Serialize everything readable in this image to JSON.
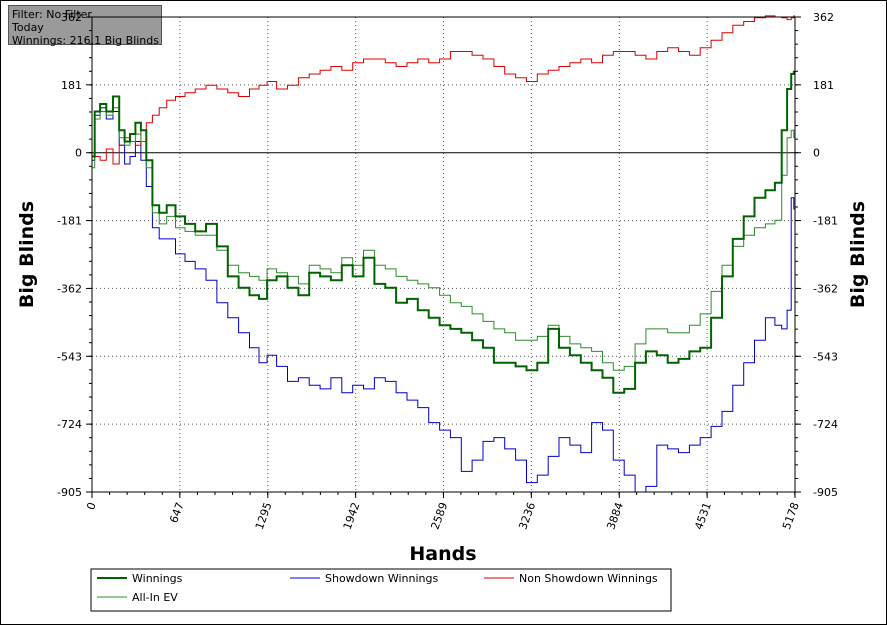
{
  "filter_box": {
    "filter_line": "Filter: No Filter",
    "date_line": "Today",
    "winnings_line": "Winnings: 216.1 Big Blinds"
  },
  "chart_data": {
    "type": "line",
    "xlabel": "Hands",
    "ylabel": "Big Blinds",
    "ylabel_right": "Big Blinds",
    "xlim": [
      0,
      5178
    ],
    "ylim": [
      -905,
      362
    ],
    "x_ticks": [
      0,
      647,
      1295,
      1942,
      2589,
      3236,
      3884,
      4531,
      5178
    ],
    "y_ticks": [
      362,
      181,
      0,
      -181,
      -362,
      -543,
      -724,
      -905
    ],
    "grid": true,
    "legend_position": "bottom",
    "series": [
      {
        "name": "Winnings",
        "color": "#006400",
        "width": 2,
        "x": [
          0,
          40,
          80,
          130,
          180,
          220,
          260,
          300,
          340,
          380,
          420,
          470,
          520,
          580,
          650,
          720,
          800,
          880,
          960,
          1040,
          1120,
          1200,
          1260,
          1320,
          1400,
          1480,
          1560,
          1640,
          1720,
          1800,
          1880,
          1960,
          2040,
          2120,
          2200,
          2280,
          2360,
          2440,
          2520,
          2600,
          2680,
          2760,
          2840,
          2920,
          3000,
          3080,
          3160,
          3240,
          3320,
          3400,
          3480,
          3560,
          3640,
          3720,
          3800,
          3880,
          3960,
          4040,
          4120,
          4200,
          4280,
          4360,
          4440,
          4520,
          4600,
          4680,
          4760,
          4840,
          4920,
          5000,
          5060,
          5100,
          5140,
          5160,
          5178
        ],
        "values": [
          -10,
          110,
          130,
          110,
          150,
          60,
          30,
          50,
          80,
          60,
          -20,
          -140,
          -160,
          -140,
          -170,
          -190,
          -210,
          -190,
          -250,
          -330,
          -360,
          -380,
          -390,
          -340,
          -330,
          -360,
          -380,
          -320,
          -330,
          -340,
          -300,
          -330,
          -280,
          -350,
          -360,
          -400,
          -390,
          -420,
          -440,
          -460,
          -470,
          -480,
          -500,
          -520,
          -560,
          -560,
          -570,
          -580,
          -560,
          -470,
          -520,
          -540,
          -560,
          -580,
          -600,
          -640,
          -630,
          -560,
          -530,
          -540,
          -560,
          -550,
          -530,
          -520,
          -440,
          -330,
          -230,
          -170,
          -120,
          -100,
          -80,
          60,
          170,
          210,
          216
        ]
      },
      {
        "name": "All-In EV",
        "color": "#2e8b2e",
        "width": 1,
        "x": [
          0,
          40,
          80,
          130,
          180,
          220,
          260,
          300,
          340,
          380,
          420,
          470,
          520,
          580,
          650,
          720,
          800,
          880,
          960,
          1040,
          1120,
          1200,
          1260,
          1320,
          1400,
          1480,
          1560,
          1640,
          1720,
          1800,
          1880,
          1960,
          2040,
          2120,
          2200,
          2280,
          2360,
          2440,
          2520,
          2600,
          2680,
          2760,
          2840,
          2920,
          3000,
          3080,
          3160,
          3240,
          3320,
          3400,
          3480,
          3560,
          3640,
          3720,
          3800,
          3880,
          3960,
          4040,
          4120,
          4200,
          4280,
          4360,
          4440,
          4520,
          4600,
          4680,
          4760,
          4840,
          4920,
          5000,
          5060,
          5100,
          5140,
          5160,
          5178
        ],
        "values": [
          -40,
          90,
          110,
          100,
          120,
          40,
          20,
          30,
          50,
          30,
          -40,
          -160,
          -190,
          -170,
          -200,
          -210,
          -220,
          -220,
          -260,
          -300,
          -320,
          -330,
          -340,
          -310,
          -320,
          -330,
          -350,
          -300,
          -310,
          -320,
          -280,
          -300,
          -260,
          -300,
          -310,
          -330,
          -340,
          -350,
          -360,
          -380,
          -400,
          -410,
          -430,
          -450,
          -470,
          -480,
          -500,
          -500,
          -490,
          -460,
          -490,
          -510,
          -520,
          -530,
          -560,
          -580,
          -570,
          -510,
          -470,
          -470,
          -480,
          -480,
          -460,
          -430,
          -370,
          -300,
          -250,
          -220,
          -200,
          -190,
          -180,
          -60,
          40,
          60,
          40
        ]
      },
      {
        "name": "Showdown Winnings",
        "color": "#0000cc",
        "width": 1,
        "x": [
          0,
          40,
          80,
          130,
          180,
          220,
          260,
          300,
          340,
          380,
          420,
          470,
          520,
          580,
          650,
          720,
          800,
          880,
          960,
          1040,
          1120,
          1200,
          1260,
          1320,
          1400,
          1480,
          1560,
          1640,
          1720,
          1800,
          1880,
          1960,
          2040,
          2120,
          2200,
          2280,
          2360,
          2440,
          2520,
          2600,
          2680,
          2760,
          2840,
          2920,
          3000,
          3080,
          3160,
          3240,
          3320,
          3400,
          3480,
          3560,
          3640,
          3720,
          3800,
          3880,
          3960,
          4040,
          4120,
          4200,
          4280,
          4360,
          4440,
          4520,
          4600,
          4680,
          4760,
          4840,
          4920,
          5000,
          5060,
          5100,
          5140,
          5160,
          5178
        ],
        "values": [
          -20,
          100,
          120,
          90,
          110,
          20,
          -30,
          -10,
          30,
          -20,
          -90,
          -200,
          -230,
          -230,
          -270,
          -290,
          -310,
          -340,
          -400,
          -440,
          -480,
          -520,
          -560,
          -540,
          -570,
          -610,
          -600,
          -620,
          -630,
          -600,
          -640,
          -620,
          -630,
          -600,
          -610,
          -640,
          -660,
          -680,
          -720,
          -740,
          -760,
          -850,
          -820,
          -770,
          -760,
          -790,
          -820,
          -880,
          -860,
          -810,
          -760,
          -780,
          -800,
          -720,
          -740,
          -820,
          -860,
          -905,
          -890,
          -780,
          -790,
          -800,
          -780,
          -760,
          -730,
          -690,
          -620,
          -560,
          -500,
          -440,
          -460,
          -470,
          -420,
          -120,
          -150
        ]
      },
      {
        "name": "Non Showdown Winnings",
        "color": "#dd0000",
        "width": 1,
        "x": [
          0,
          40,
          80,
          130,
          180,
          220,
          260,
          300,
          340,
          380,
          420,
          470,
          520,
          580,
          650,
          720,
          800,
          880,
          960,
          1040,
          1120,
          1200,
          1260,
          1320,
          1400,
          1480,
          1560,
          1640,
          1720,
          1800,
          1880,
          1960,
          2040,
          2120,
          2200,
          2280,
          2360,
          2440,
          2520,
          2600,
          2680,
          2760,
          2840,
          2920,
          3000,
          3080,
          3160,
          3240,
          3320,
          3400,
          3480,
          3560,
          3640,
          3720,
          3800,
          3880,
          3960,
          4040,
          4120,
          4200,
          4280,
          4360,
          4440,
          4520,
          4600,
          4680,
          4760,
          4840,
          4920,
          5000,
          5060,
          5100,
          5140,
          5160,
          5178
        ],
        "values": [
          0,
          -10,
          -20,
          10,
          -30,
          20,
          40,
          30,
          20,
          60,
          80,
          100,
          120,
          140,
          150,
          160,
          170,
          180,
          170,
          160,
          150,
          170,
          180,
          190,
          170,
          180,
          200,
          210,
          220,
          230,
          220,
          240,
          250,
          250,
          240,
          230,
          240,
          250,
          240,
          250,
          270,
          270,
          260,
          250,
          230,
          210,
          200,
          190,
          210,
          220,
          230,
          240,
          250,
          240,
          260,
          270,
          270,
          260,
          250,
          270,
          280,
          270,
          260,
          280,
          300,
          320,
          340,
          350,
          360,
          365,
          362,
          360,
          355,
          360,
          365
        ]
      }
    ],
    "legend": {
      "entries": [
        {
          "name": "Winnings",
          "color": "#006400",
          "width": 2
        },
        {
          "name": "Showdown Winnings",
          "color": "#0000cc",
          "width": 1
        },
        {
          "name": "Non Showdown Winnings",
          "color": "#dd0000",
          "width": 1
        },
        {
          "name": "All-In EV",
          "color": "#2e8b2e",
          "width": 1
        }
      ]
    }
  }
}
